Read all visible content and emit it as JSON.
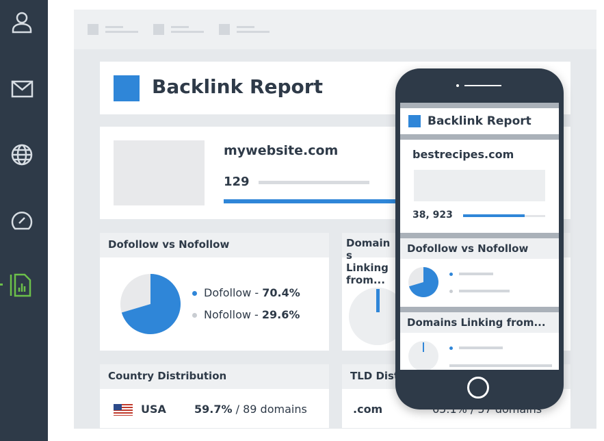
{
  "sidebar": {
    "items": [
      {
        "icon": "user-icon"
      },
      {
        "icon": "mail-icon"
      },
      {
        "icon": "globe-icon"
      },
      {
        "icon": "gauge-icon"
      },
      {
        "icon": "report-icon",
        "active": true
      }
    ],
    "active_color": "#6cc04a"
  },
  "colors": {
    "accent": "#2f86d8",
    "sidebar": "#2e3a48",
    "muted": "#e8e9eb"
  },
  "report": {
    "title": "Backlink Report",
    "site": "mywebsite.com",
    "count": "129",
    "bar_progress": 1.0
  },
  "dofollow": {
    "title": "Dofollow vs Nofollow",
    "items": [
      {
        "label": "Dofollow - ",
        "value": "70.4%"
      },
      {
        "label": "Nofollow - ",
        "value": "29.6%"
      }
    ],
    "dofollow_fraction": 0.704
  },
  "domains": {
    "title": "Domains Linking from..."
  },
  "country": {
    "title": "Country Distribution",
    "rows": [
      {
        "flag": "us-flag-icon",
        "country": "USA",
        "value": "59.7%",
        "domains": "/ 89 domains"
      }
    ]
  },
  "tld": {
    "title": "TLD Distribution",
    "rows": [
      {
        "tld": ".com",
        "value": "65.1% / 57 domains"
      }
    ]
  },
  "phone": {
    "title": "Backlink Report",
    "site": "bestrecipes.com",
    "count": "38, 923",
    "count_progress": 0.75,
    "section1": "Dofollow vs Nofollow",
    "section2": "Domains Linking from..."
  }
}
